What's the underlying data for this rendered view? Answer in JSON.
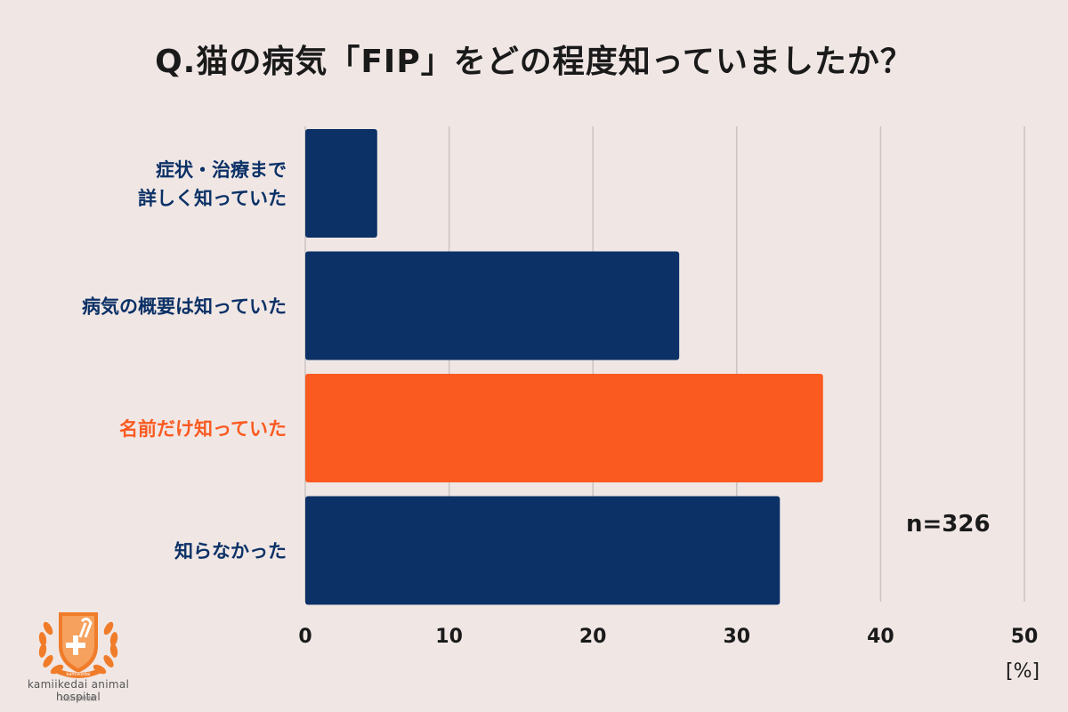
{
  "title": "Q.猫の病気「FIP」をどの程度知っていましたか？",
  "chart_data": {
    "type": "bar",
    "orientation": "horizontal",
    "categories": [
      [
        "症状・治療まで",
        "詳しく知っていた"
      ],
      [
        "病気の概要は知っていた"
      ],
      [
        "名前だけ知っていた"
      ],
      [
        "知らなかった"
      ]
    ],
    "values": [
      5,
      26,
      36,
      33
    ],
    "highlight_index": 2,
    "xlim": [
      0,
      50
    ],
    "xticks": [
      "0",
      "10",
      "20",
      "30",
      "40",
      "50"
    ],
    "grid": true,
    "unit": "[%]",
    "n_label": "n=326",
    "colors": {
      "bar": "#0c3166",
      "highlight": "#fa5a20",
      "grid": "#c9c3c2",
      "label": "#0c3166",
      "highlight_label": "#fa5a20"
    }
  },
  "logo": {
    "text": "kamiikedai animal hospital",
    "sub": "上池台動物病院",
    "badge": "kamiikedai"
  }
}
